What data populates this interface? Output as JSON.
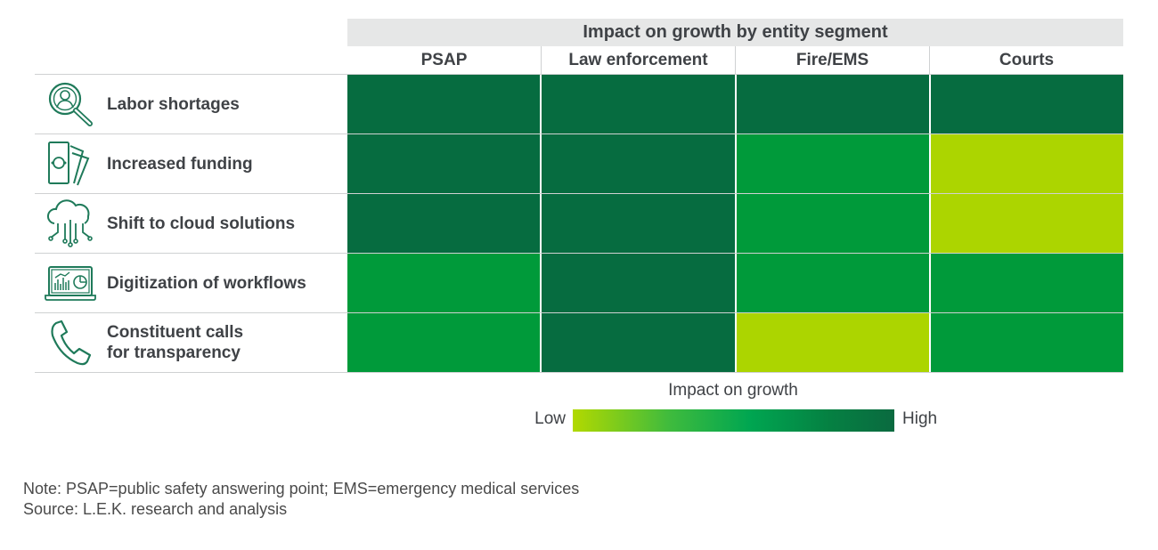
{
  "chart_data": {
    "type": "heatmap",
    "title": "Impact on growth by entity segment",
    "columns": [
      "PSAP",
      "Law enforcement",
      "Fire/EMS",
      "Courts"
    ],
    "rows": [
      {
        "label": "Labor shortages",
        "icon": "magnifier-person-icon",
        "values": [
          5,
          5,
          5,
          5
        ]
      },
      {
        "label": "Increased funding",
        "icon": "money-stack-icon",
        "values": [
          5,
          5,
          3,
          1
        ]
      },
      {
        "label": "Shift to cloud solutions",
        "icon": "cloud-network-icon",
        "values": [
          5,
          5,
          3,
          1
        ]
      },
      {
        "label": "Digitization of workflows",
        "icon": "laptop-chart-icon",
        "values": [
          3,
          5,
          3,
          3
        ]
      },
      {
        "label": "Constituent calls\nfor transparency",
        "icon": "phone-icon",
        "values": [
          3,
          5,
          1,
          3
        ]
      }
    ],
    "scale": {
      "min": 1,
      "max": 5,
      "title": "Impact on growth",
      "low_label": "Low",
      "high_label": "High"
    },
    "colors": {
      "1": "#acd500",
      "3": "#009a3a",
      "5": "#066c40"
    }
  },
  "notes": {
    "note": "Note: PSAP=public safety answering point; EMS=emergency medical services",
    "source": "Source: L.E.K. research and analysis"
  }
}
